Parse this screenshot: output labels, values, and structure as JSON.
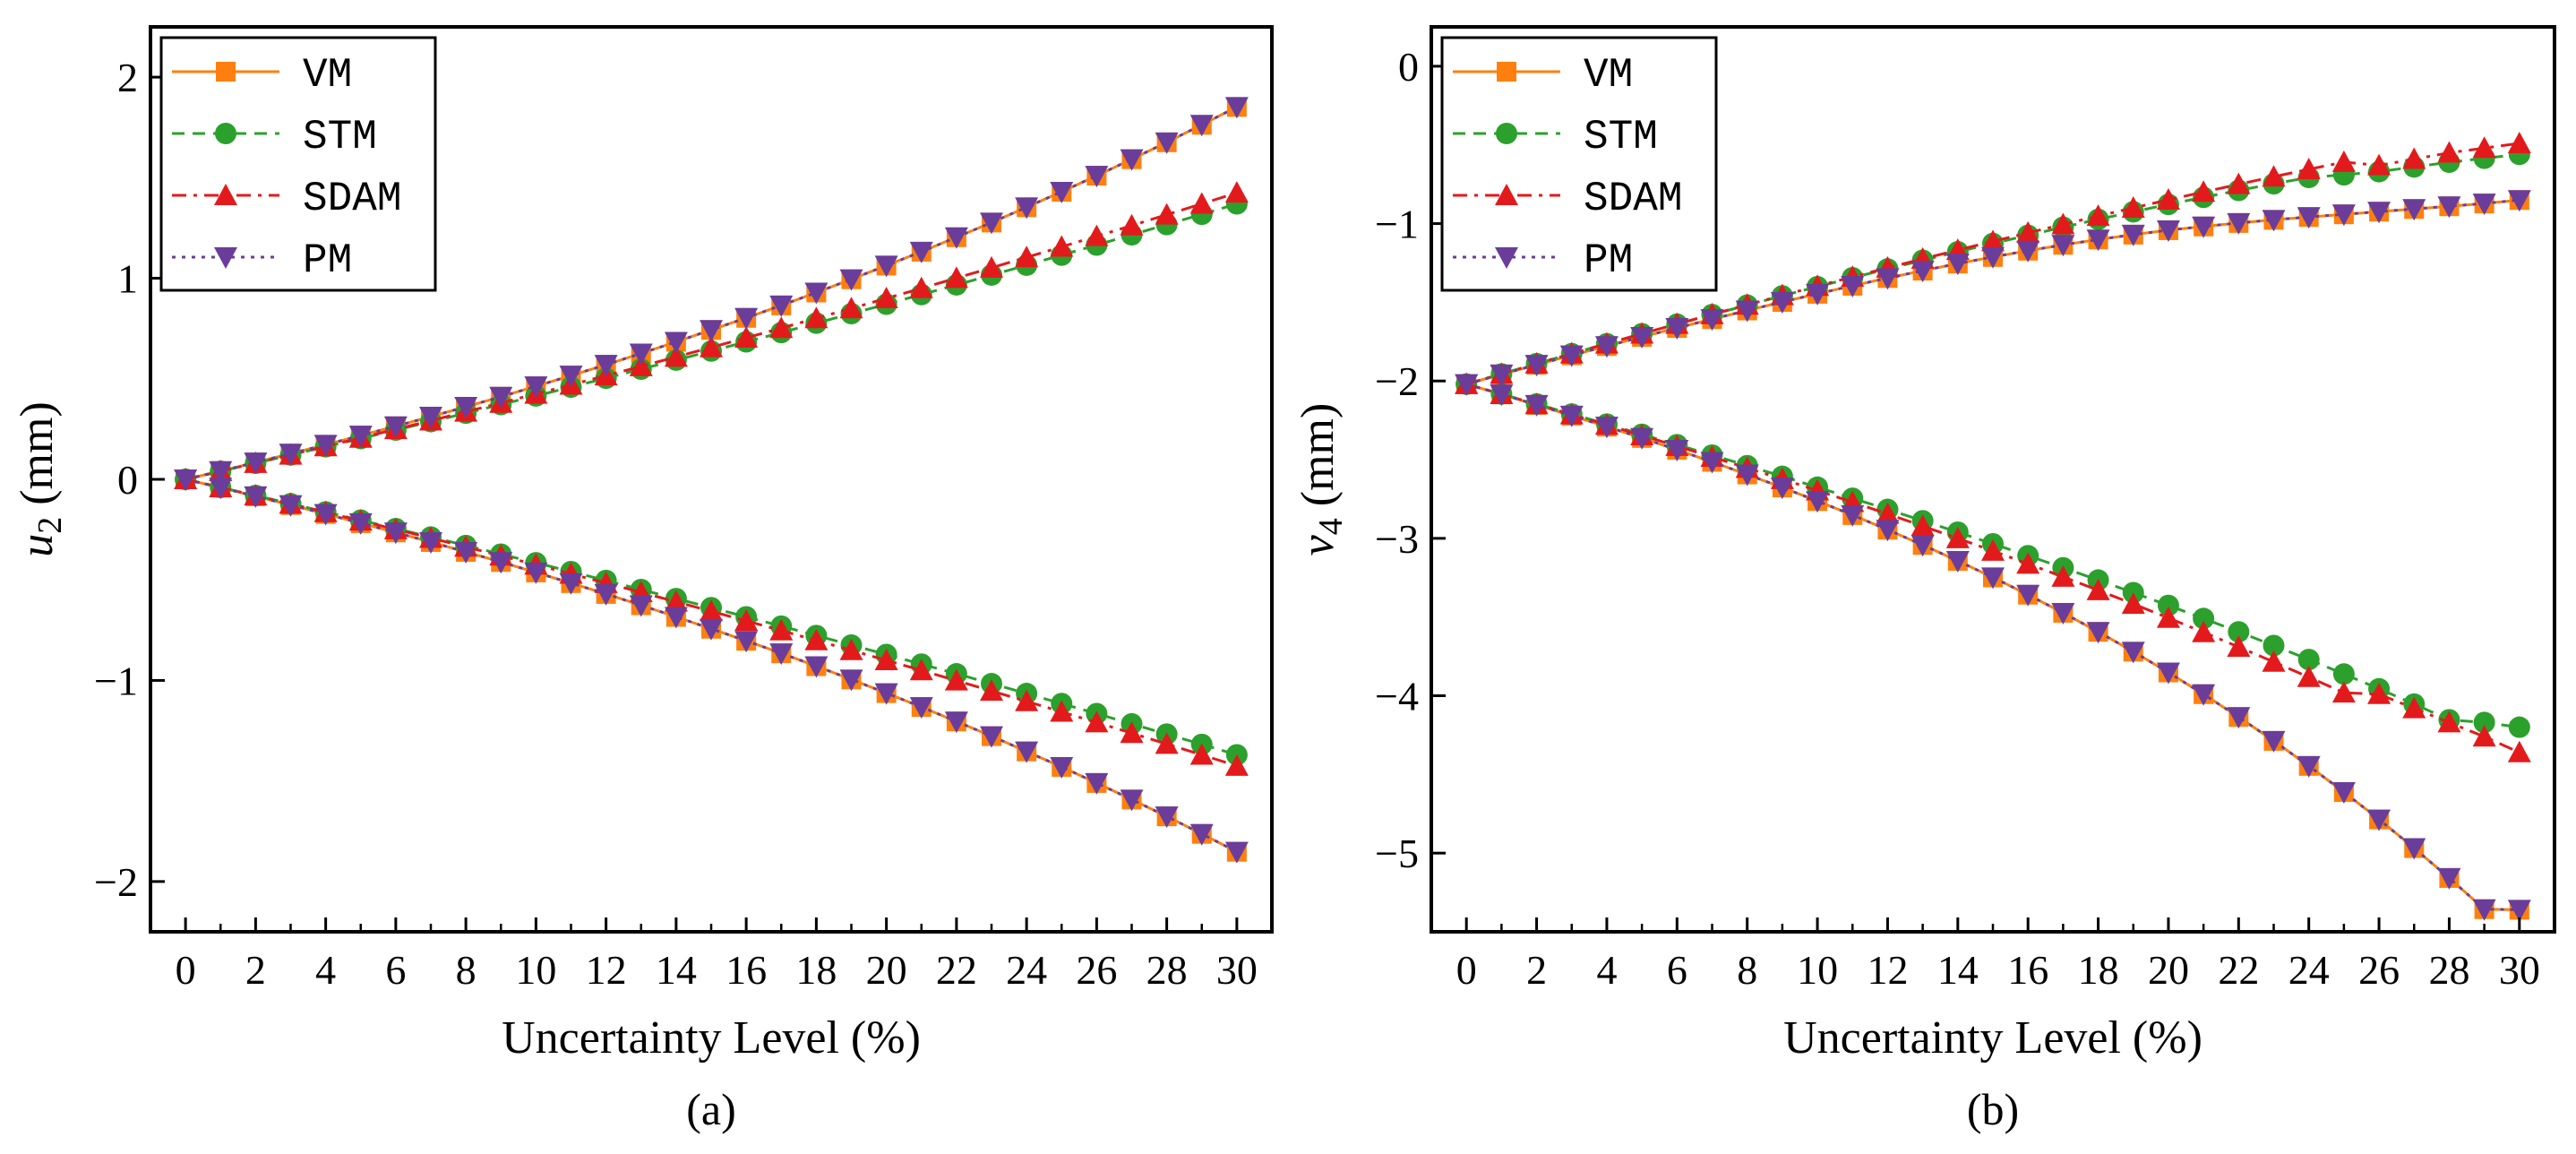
{
  "colors": {
    "VM": "#ff7f0e",
    "STM": "#2ca02c",
    "SDAM": "#e31a1c",
    "PM": "#6a3d9a"
  },
  "series_style": {
    "VM": {
      "dash": "solid",
      "marker": "square"
    },
    "STM": {
      "dash": "dashed",
      "marker": "circle"
    },
    "SDAM": {
      "dash": "dashdot",
      "marker": "triangle-up"
    },
    "PM": {
      "dash": "dotted",
      "marker": "triangle-down"
    }
  },
  "chart_data": [
    {
      "type": "line",
      "panel_label": "(a)",
      "xlabel": "Uncertainty Level (%)",
      "ylabel_main": "u",
      "ylabel_sub": "2",
      "ylabel_unit": " (mm)",
      "xlim": [
        -1,
        31
      ],
      "ylim": [
        -2.25,
        2.25
      ],
      "xticks": [
        0,
        2,
        4,
        6,
        8,
        10,
        12,
        14,
        16,
        18,
        20,
        22,
        24,
        26,
        28,
        30
      ],
      "yticks": [
        -2,
        -1,
        0,
        1,
        2
      ],
      "ytick_labels": [
        "−2",
        "−1",
        "0",
        "1",
        "2"
      ],
      "legend": [
        "VM",
        "STM",
        "SDAM",
        "PM"
      ],
      "legend_position": "top-left",
      "x": [
        0,
        1,
        2,
        3,
        4,
        5,
        6,
        7,
        8,
        9,
        10,
        11,
        12,
        13,
        14,
        15,
        16,
        17,
        18,
        19,
        20,
        21,
        22,
        23,
        24,
        25,
        26,
        27,
        28,
        29,
        30
      ],
      "series": [
        {
          "name": "VM",
          "branch": "upper",
          "values": [
            0,
            0.041,
            0.084,
            0.128,
            0.172,
            0.218,
            0.264,
            0.312,
            0.361,
            0.411,
            0.463,
            0.516,
            0.57,
            0.626,
            0.684,
            0.743,
            0.803,
            0.865,
            0.929,
            0.995,
            1.063,
            1.132,
            1.204,
            1.277,
            1.353,
            1.43,
            1.51,
            1.592,
            1.676,
            1.763,
            1.852
          ]
        },
        {
          "name": "VM",
          "branch": "lower",
          "values": [
            0,
            -0.041,
            -0.084,
            -0.128,
            -0.172,
            -0.218,
            -0.264,
            -0.312,
            -0.361,
            -0.411,
            -0.463,
            -0.516,
            -0.57,
            -0.626,
            -0.684,
            -0.743,
            -0.803,
            -0.865,
            -0.929,
            -0.995,
            -1.063,
            -1.132,
            -1.204,
            -1.277,
            -1.353,
            -1.43,
            -1.51,
            -1.592,
            -1.676,
            -1.763,
            -1.852
          ]
        },
        {
          "name": "STM",
          "branch": "upper",
          "values": [
            0,
            0.04,
            0.08,
            0.121,
            0.162,
            0.203,
            0.245,
            0.287,
            0.329,
            0.372,
            0.415,
            0.459,
            0.503,
            0.548,
            0.593,
            0.638,
            0.684,
            0.73,
            0.777,
            0.824,
            0.871,
            0.919,
            0.967,
            1.016,
            1.065,
            1.115,
            1.165,
            1.216,
            1.267,
            1.318,
            1.37
          ]
        },
        {
          "name": "STM",
          "branch": "lower",
          "values": [
            0,
            -0.04,
            -0.08,
            -0.121,
            -0.162,
            -0.203,
            -0.245,
            -0.287,
            -0.329,
            -0.372,
            -0.415,
            -0.459,
            -0.503,
            -0.548,
            -0.593,
            -0.638,
            -0.684,
            -0.73,
            -0.777,
            -0.824,
            -0.871,
            -0.919,
            -0.967,
            -1.016,
            -1.065,
            -1.115,
            -1.165,
            -1.216,
            -1.267,
            -1.318,
            -1.37
          ]
        },
        {
          "name": "SDAM",
          "branch": "upper",
          "values": [
            0,
            0.04,
            0.081,
            0.122,
            0.164,
            0.206,
            0.249,
            0.292,
            0.336,
            0.38,
            0.425,
            0.47,
            0.516,
            0.562,
            0.609,
            0.656,
            0.704,
            0.752,
            0.801,
            0.85,
            0.9,
            0.95,
            1.001,
            1.052,
            1.104,
            1.156,
            1.209,
            1.262,
            1.316,
            1.37,
            1.425
          ]
        },
        {
          "name": "SDAM",
          "branch": "lower",
          "values": [
            0,
            -0.04,
            -0.081,
            -0.122,
            -0.164,
            -0.206,
            -0.249,
            -0.292,
            -0.336,
            -0.38,
            -0.425,
            -0.47,
            -0.516,
            -0.562,
            -0.609,
            -0.656,
            -0.704,
            -0.752,
            -0.801,
            -0.85,
            -0.9,
            -0.95,
            -1.001,
            -1.052,
            -1.104,
            -1.156,
            -1.209,
            -1.262,
            -1.316,
            -1.37,
            -1.425
          ]
        },
        {
          "name": "PM",
          "branch": "upper",
          "values": [
            0,
            0.041,
            0.084,
            0.128,
            0.172,
            0.218,
            0.264,
            0.312,
            0.361,
            0.411,
            0.463,
            0.516,
            0.57,
            0.626,
            0.684,
            0.743,
            0.803,
            0.865,
            0.929,
            0.995,
            1.063,
            1.132,
            1.204,
            1.277,
            1.353,
            1.43,
            1.51,
            1.592,
            1.676,
            1.763,
            1.852
          ]
        },
        {
          "name": "PM",
          "branch": "lower",
          "values": [
            0,
            -0.041,
            -0.084,
            -0.128,
            -0.172,
            -0.218,
            -0.264,
            -0.312,
            -0.361,
            -0.411,
            -0.463,
            -0.516,
            -0.57,
            -0.626,
            -0.684,
            -0.743,
            -0.803,
            -0.865,
            -0.929,
            -0.995,
            -1.063,
            -1.132,
            -1.204,
            -1.277,
            -1.353,
            -1.43,
            -1.51,
            -1.592,
            -1.676,
            -1.763,
            -1.852
          ]
        }
      ]
    },
    {
      "type": "line",
      "panel_label": "(b)",
      "xlabel": "Uncertainty Level (%)",
      "ylabel_main": "v",
      "ylabel_sub": "4",
      "ylabel_unit": " (mm)",
      "xlim": [
        -1,
        31
      ],
      "ylim": [
        -5.5,
        0.25
      ],
      "xticks": [
        0,
        2,
        4,
        6,
        8,
        10,
        12,
        14,
        16,
        18,
        20,
        22,
        24,
        26,
        28,
        30
      ],
      "yticks": [
        -5,
        -4,
        -3,
        -2,
        -1,
        0
      ],
      "ytick_labels": [
        "−5",
        "−4",
        "−3",
        "−2",
        "−1",
        "0"
      ],
      "legend": [
        "VM",
        "STM",
        "SDAM",
        "PM"
      ],
      "legend_position": "top-left",
      "x": [
        0,
        1,
        2,
        3,
        4,
        5,
        6,
        7,
        8,
        9,
        10,
        11,
        12,
        13,
        14,
        15,
        16,
        17,
        18,
        19,
        20,
        21,
        22,
        23,
        24,
        25,
        26,
        27,
        28,
        29,
        30
      ],
      "series": [
        {
          "name": "VM",
          "branch": "upper",
          "values": [
            -2.02,
            -1.958,
            -1.897,
            -1.837,
            -1.778,
            -1.72,
            -1.663,
            -1.607,
            -1.552,
            -1.498,
            -1.446,
            -1.395,
            -1.346,
            -1.299,
            -1.254,
            -1.212,
            -1.172,
            -1.135,
            -1.101,
            -1.07,
            -1.042,
            -1.018,
            -0.996,
            -0.976,
            -0.958,
            -0.941,
            -0.924,
            -0.907,
            -0.89,
            -0.872,
            -0.85
          ]
        },
        {
          "name": "VM",
          "branch": "lower",
          "values": [
            -2.02,
            -2.085,
            -2.152,
            -2.22,
            -2.29,
            -2.362,
            -2.437,
            -2.514,
            -2.594,
            -2.677,
            -2.763,
            -2.852,
            -2.945,
            -3.042,
            -3.143,
            -3.248,
            -3.358,
            -3.473,
            -3.594,
            -3.72,
            -3.852,
            -3.99,
            -4.135,
            -4.287,
            -4.446,
            -4.612,
            -4.786,
            -4.968,
            -5.158,
            -5.356,
            -5.36
          ]
        },
        {
          "name": "STM",
          "branch": "upper",
          "values": [
            -2.02,
            -1.955,
            -1.89,
            -1.826,
            -1.763,
            -1.7,
            -1.639,
            -1.578,
            -1.518,
            -1.459,
            -1.401,
            -1.344,
            -1.288,
            -1.233,
            -1.179,
            -1.126,
            -1.074,
            -1.023,
            -0.973,
            -0.925,
            -0.878,
            -0.833,
            -0.789,
            -0.747,
            -0.707,
            -0.69,
            -0.67,
            -0.64,
            -0.61,
            -0.585,
            -0.56
          ]
        },
        {
          "name": "STM",
          "branch": "lower",
          "values": [
            -2.02,
            -2.083,
            -2.146,
            -2.21,
            -2.274,
            -2.339,
            -2.405,
            -2.471,
            -2.538,
            -2.606,
            -2.675,
            -2.745,
            -2.816,
            -2.888,
            -2.961,
            -3.035,
            -3.11,
            -3.187,
            -3.265,
            -3.345,
            -3.426,
            -3.509,
            -3.594,
            -3.681,
            -3.77,
            -3.862,
            -3.956,
            -4.053,
            -4.153,
            -4.17,
            -4.2
          ]
        },
        {
          "name": "SDAM",
          "branch": "upper",
          "values": [
            -2.02,
            -1.955,
            -1.89,
            -1.826,
            -1.763,
            -1.7,
            -1.638,
            -1.577,
            -1.516,
            -1.456,
            -1.397,
            -1.339,
            -1.281,
            -1.224,
            -1.168,
            -1.113,
            -1.059,
            -1.005,
            -0.952,
            -0.9,
            -0.849,
            -0.799,
            -0.75,
            -0.702,
            -0.655,
            -0.609,
            -0.63,
            -0.59,
            -0.55,
            -0.52,
            -0.49
          ]
        },
        {
          "name": "SDAM",
          "branch": "lower",
          "values": [
            -2.02,
            -2.084,
            -2.148,
            -2.213,
            -2.279,
            -2.346,
            -2.414,
            -2.483,
            -2.553,
            -2.624,
            -2.696,
            -2.77,
            -2.845,
            -2.922,
            -3.0,
            -3.08,
            -3.162,
            -3.245,
            -3.33,
            -3.417,
            -3.506,
            -3.597,
            -3.69,
            -3.785,
            -3.882,
            -3.981,
            -3.99,
            -4.08,
            -4.17,
            -4.26,
            -4.36
          ]
        },
        {
          "name": "PM",
          "branch": "upper",
          "values": [
            -2.02,
            -1.958,
            -1.897,
            -1.837,
            -1.778,
            -1.72,
            -1.663,
            -1.607,
            -1.552,
            -1.498,
            -1.446,
            -1.395,
            -1.346,
            -1.299,
            -1.254,
            -1.212,
            -1.172,
            -1.135,
            -1.101,
            -1.07,
            -1.042,
            -1.018,
            -0.996,
            -0.976,
            -0.958,
            -0.941,
            -0.924,
            -0.907,
            -0.89,
            -0.872,
            -0.85
          ]
        },
        {
          "name": "PM",
          "branch": "lower",
          "values": [
            -2.02,
            -2.085,
            -2.152,
            -2.22,
            -2.29,
            -2.362,
            -2.437,
            -2.514,
            -2.594,
            -2.677,
            -2.763,
            -2.852,
            -2.945,
            -3.042,
            -3.143,
            -3.248,
            -3.358,
            -3.473,
            -3.594,
            -3.72,
            -3.852,
            -3.99,
            -4.135,
            -4.287,
            -4.446,
            -4.612,
            -4.786,
            -4.968,
            -5.158,
            -5.356,
            -5.36
          ]
        }
      ]
    }
  ]
}
